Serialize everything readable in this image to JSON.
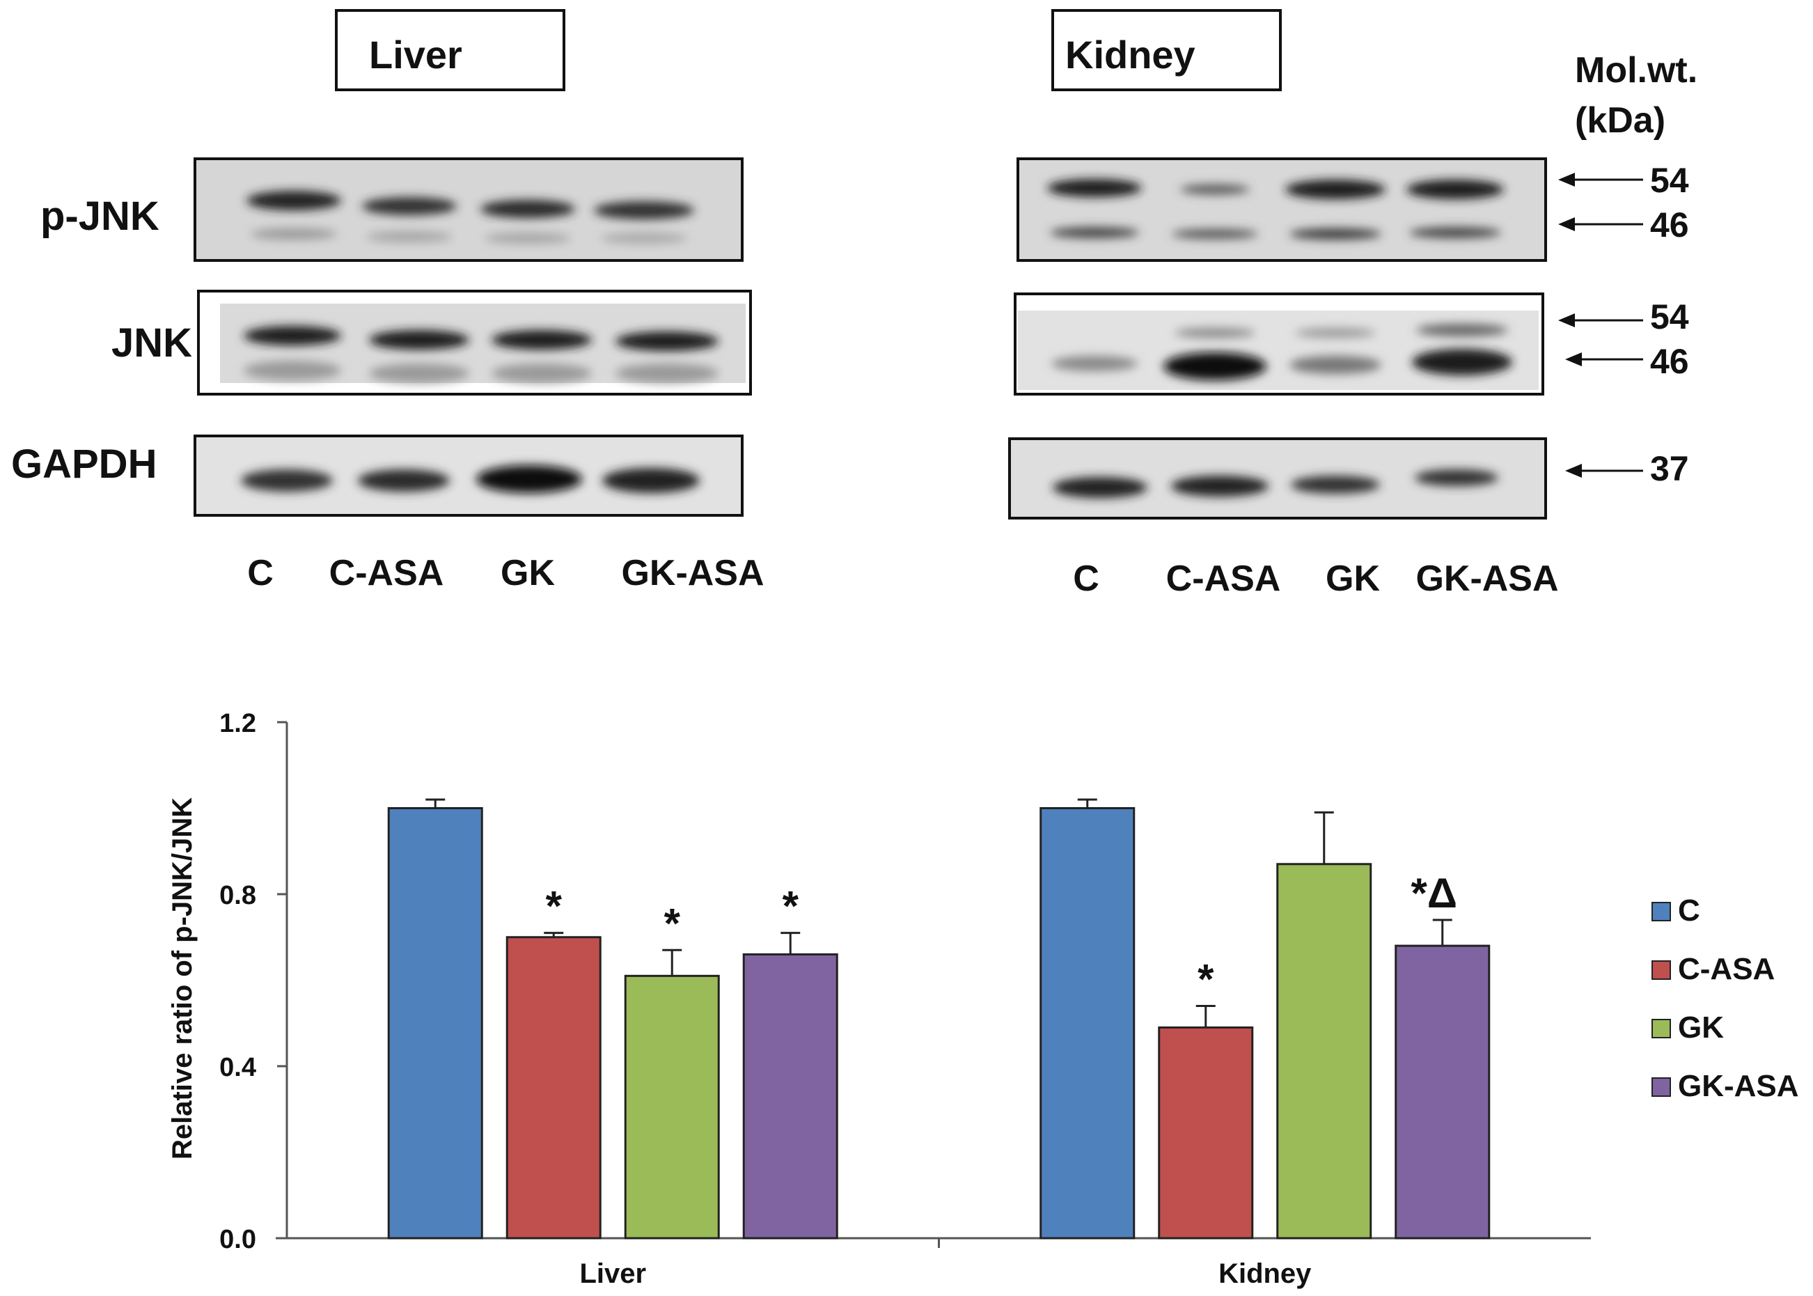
{
  "blot": {
    "panels": [
      {
        "title": "Liver",
        "lanes": [
          "C",
          "C-ASA",
          "GK",
          "GK-ASA"
        ]
      },
      {
        "title": "Kidney",
        "lanes": [
          "C",
          "C-ASA",
          "GK",
          "GK-ASA"
        ]
      }
    ],
    "rows": [
      "p-JNK",
      "JNK",
      "GAPDH"
    ],
    "mol_wt_header": [
      "Mol.wt.",
      "(kDa)"
    ],
    "markers": [
      "54",
      "46",
      "54",
      "46",
      "37"
    ]
  },
  "chart_data": {
    "type": "bar",
    "categories": [
      "Liver",
      "Kidney"
    ],
    "ylabel": "Relative ratio of p-JNK/JNK",
    "xlabel": "",
    "ylim": [
      0,
      1.2
    ],
    "yticks": [
      "0.0",
      "0.4",
      "0.8",
      "1.2"
    ],
    "legend_position": "right",
    "series": [
      {
        "name": "C",
        "color": "#4f81bd",
        "values": [
          1.0,
          1.0
        ],
        "errors": [
          0.02,
          0.02
        ],
        "annotations": [
          "",
          ""
        ]
      },
      {
        "name": "C-ASA",
        "color": "#c0504d",
        "values": [
          0.7,
          0.49
        ],
        "errors": [
          0.01,
          0.05
        ],
        "annotations": [
          "*",
          "*"
        ]
      },
      {
        "name": "GK",
        "color": "#9bbb59",
        "values": [
          0.61,
          0.87
        ],
        "errors": [
          0.06,
          0.12
        ],
        "annotations": [
          "*",
          ""
        ]
      },
      {
        "name": "GK-ASA",
        "color": "#8064a2",
        "values": [
          0.66,
          0.68
        ],
        "errors": [
          0.05,
          0.06
        ],
        "annotations": [
          "*",
          "*Δ"
        ]
      }
    ]
  }
}
